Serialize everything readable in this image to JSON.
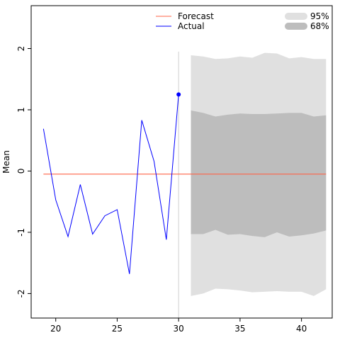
{
  "chart_data": {
    "type": "line",
    "title": "",
    "xlabel": "",
    "ylabel": "Mean",
    "xlim": [
      18,
      42.5
    ],
    "ylim": [
      -2.4,
      2.7
    ],
    "xticks": [
      20,
      25,
      30,
      35,
      40
    ],
    "yticks": [
      -2,
      -1,
      0,
      1,
      2
    ],
    "grid": false,
    "legend_position": "top",
    "forecast_origin_x": 30,
    "actual": {
      "name": "Actual",
      "color": "#0000ff",
      "x": [
        19,
        20,
        21,
        22,
        23,
        24,
        25,
        26,
        27,
        28,
        29,
        30
      ],
      "y": [
        0.69,
        -0.47,
        -1.07,
        -0.22,
        -1.03,
        -0.73,
        -0.63,
        -1.68,
        0.83,
        0.16,
        -1.12,
        1.25
      ],
      "highlight_last": true
    },
    "forecast": {
      "name": "Forecast",
      "color": "#ff6347",
      "x": [
        19,
        42
      ],
      "y": [
        -0.05,
        -0.05
      ]
    },
    "intervals": [
      {
        "name": "95%",
        "color": "#e0e0e0",
        "x": [
          31,
          32,
          33,
          34,
          35,
          36,
          37,
          38,
          39,
          40,
          41,
          42
        ],
        "upper": [
          1.89,
          1.87,
          1.83,
          1.84,
          1.87,
          1.85,
          1.93,
          1.92,
          1.84,
          1.86,
          1.83,
          1.83
        ],
        "lower": [
          -2.04,
          -2.0,
          -1.92,
          -1.93,
          -1.95,
          -1.98,
          -1.97,
          -1.96,
          -1.97,
          -1.97,
          -2.04,
          -1.93
        ]
      },
      {
        "name": "68%",
        "color": "#bdbdbd",
        "x": [
          31,
          32,
          33,
          34,
          35,
          36,
          37,
          38,
          39,
          40,
          41,
          42
        ],
        "upper": [
          0.99,
          0.95,
          0.89,
          0.92,
          0.94,
          0.93,
          0.93,
          0.94,
          0.95,
          0.95,
          0.89,
          0.91
        ],
        "lower": [
          -1.03,
          -1.03,
          -0.96,
          -1.04,
          -1.03,
          -1.06,
          -1.08,
          -1.0,
          -1.07,
          -1.05,
          -1.02,
          -0.97
        ]
      }
    ],
    "legend": {
      "lines": [
        "Forecast",
        "Actual"
      ],
      "bands": [
        "95%",
        "68%"
      ]
    }
  }
}
